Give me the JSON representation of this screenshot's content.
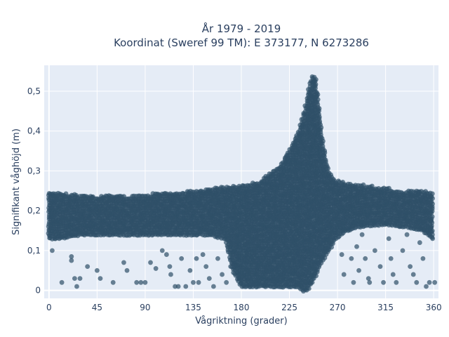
{
  "chart_data": {
    "type": "scatter",
    "title": "År 1979 - 2019",
    "subtitle": "Koordinat (Sweref 99 TM): E 373177, N 6273286",
    "xlabel": "Vågriktning (grader)",
    "ylabel": "Signifikant våghöjd (m)",
    "xlim": [
      -4.5,
      364.5
    ],
    "ylim": [
      -0.02,
      0.565
    ],
    "x_ticks": [
      0,
      45,
      90,
      135,
      180,
      225,
      270,
      315,
      360
    ],
    "x_tick_labels": [
      "0",
      "45",
      "90",
      "135",
      "180",
      "225",
      "270",
      "315",
      "360"
    ],
    "y_ticks": [
      0,
      0.1,
      0.2,
      0.3,
      0.4,
      0.5
    ],
    "y_tick_labels": [
      "0",
      "0,1",
      "0,2",
      "0,3",
      "0,4",
      "0,5"
    ],
    "grid": true,
    "marker_color": "#2f5068",
    "marker_opacity": 0.7,
    "background_color": "#e5ecf6",
    "envelope": [
      [
        0,
        0.13,
        0.25
      ],
      [
        10,
        0.13,
        0.245
      ],
      [
        20,
        0.135,
        0.24
      ],
      [
        30,
        0.14,
        0.24
      ],
      [
        45,
        0.14,
        0.235
      ],
      [
        60,
        0.14,
        0.24
      ],
      [
        75,
        0.14,
        0.235
      ],
      [
        90,
        0.14,
        0.24
      ],
      [
        105,
        0.14,
        0.245
      ],
      [
        120,
        0.14,
        0.245
      ],
      [
        135,
        0.14,
        0.25
      ],
      [
        150,
        0.14,
        0.255
      ],
      [
        165,
        0.13,
        0.26
      ],
      [
        172,
        0.05,
        0.262
      ],
      [
        180,
        0.01,
        0.265
      ],
      [
        195,
        0.01,
        0.27
      ],
      [
        205,
        0.01,
        0.29
      ],
      [
        215,
        0.01,
        0.31
      ],
      [
        222,
        0.01,
        0.34
      ],
      [
        228,
        0.01,
        0.37
      ],
      [
        233,
        0.01,
        0.4
      ],
      [
        238,
        0.0,
        0.44
      ],
      [
        242,
        0.0,
        0.49
      ],
      [
        246,
        0.02,
        0.54
      ],
      [
        250,
        0.04,
        0.53
      ],
      [
        253,
        0.06,
        0.45
      ],
      [
        257,
        0.08,
        0.36
      ],
      [
        262,
        0.1,
        0.3
      ],
      [
        268,
        0.13,
        0.275
      ],
      [
        278,
        0.15,
        0.27
      ],
      [
        290,
        0.16,
        0.265
      ],
      [
        305,
        0.165,
        0.26
      ],
      [
        320,
        0.165,
        0.255
      ],
      [
        335,
        0.16,
        0.25
      ],
      [
        350,
        0.15,
        0.25
      ],
      [
        360,
        0.13,
        0.245
      ]
    ],
    "scattered_points": [
      [
        3,
        0.1
      ],
      [
        12,
        0.02
      ],
      [
        21,
        0.085
      ],
      [
        21,
        0.075
      ],
      [
        24,
        0.03
      ],
      [
        26,
        0.01
      ],
      [
        29,
        0.03
      ],
      [
        36,
        0.06
      ],
      [
        45,
        0.05
      ],
      [
        48,
        0.03
      ],
      [
        60,
        0.02
      ],
      [
        70,
        0.07
      ],
      [
        73,
        0.05
      ],
      [
        82,
        0.02
      ],
      [
        86,
        0.02
      ],
      [
        90,
        0.02
      ],
      [
        95,
        0.07
      ],
      [
        100,
        0.055
      ],
      [
        106,
        0.1
      ],
      [
        110,
        0.09
      ],
      [
        113,
        0.06
      ],
      [
        114,
        0.04
      ],
      [
        118,
        0.01
      ],
      [
        121,
        0.01
      ],
      [
        124,
        0.08
      ],
      [
        128,
        0.01
      ],
      [
        132,
        0.05
      ],
      [
        135,
        0.02
      ],
      [
        138,
        0.08
      ],
      [
        140,
        0.02
      ],
      [
        144,
        0.09
      ],
      [
        147,
        0.06
      ],
      [
        150,
        0.03
      ],
      [
        154,
        0.01
      ],
      [
        158,
        0.08
      ],
      [
        162,
        0.04
      ],
      [
        166,
        0.02
      ],
      [
        170,
        0.06
      ],
      [
        274,
        0.09
      ],
      [
        276,
        0.04
      ],
      [
        280,
        0.15
      ],
      [
        283,
        0.08
      ],
      [
        285,
        0.02
      ],
      [
        288,
        0.11
      ],
      [
        290,
        0.05
      ],
      [
        293,
        0.14
      ],
      [
        296,
        0.08
      ],
      [
        299,
        0.03
      ],
      [
        300,
        0.02
      ],
      [
        305,
        0.1
      ],
      [
        310,
        0.06
      ],
      [
        313,
        0.02
      ],
      [
        318,
        0.13
      ],
      [
        320,
        0.08
      ],
      [
        322,
        0.04
      ],
      [
        325,
        0.02
      ],
      [
        328,
        0.16
      ],
      [
        331,
        0.1
      ],
      [
        335,
        0.14
      ],
      [
        338,
        0.06
      ],
      [
        341,
        0.04
      ],
      [
        344,
        0.02
      ],
      [
        347,
        0.12
      ],
      [
        350,
        0.08
      ],
      [
        353,
        0.01
      ],
      [
        356,
        0.02
      ],
      [
        359,
        0.13
      ],
      [
        361,
        0.02
      ]
    ]
  }
}
